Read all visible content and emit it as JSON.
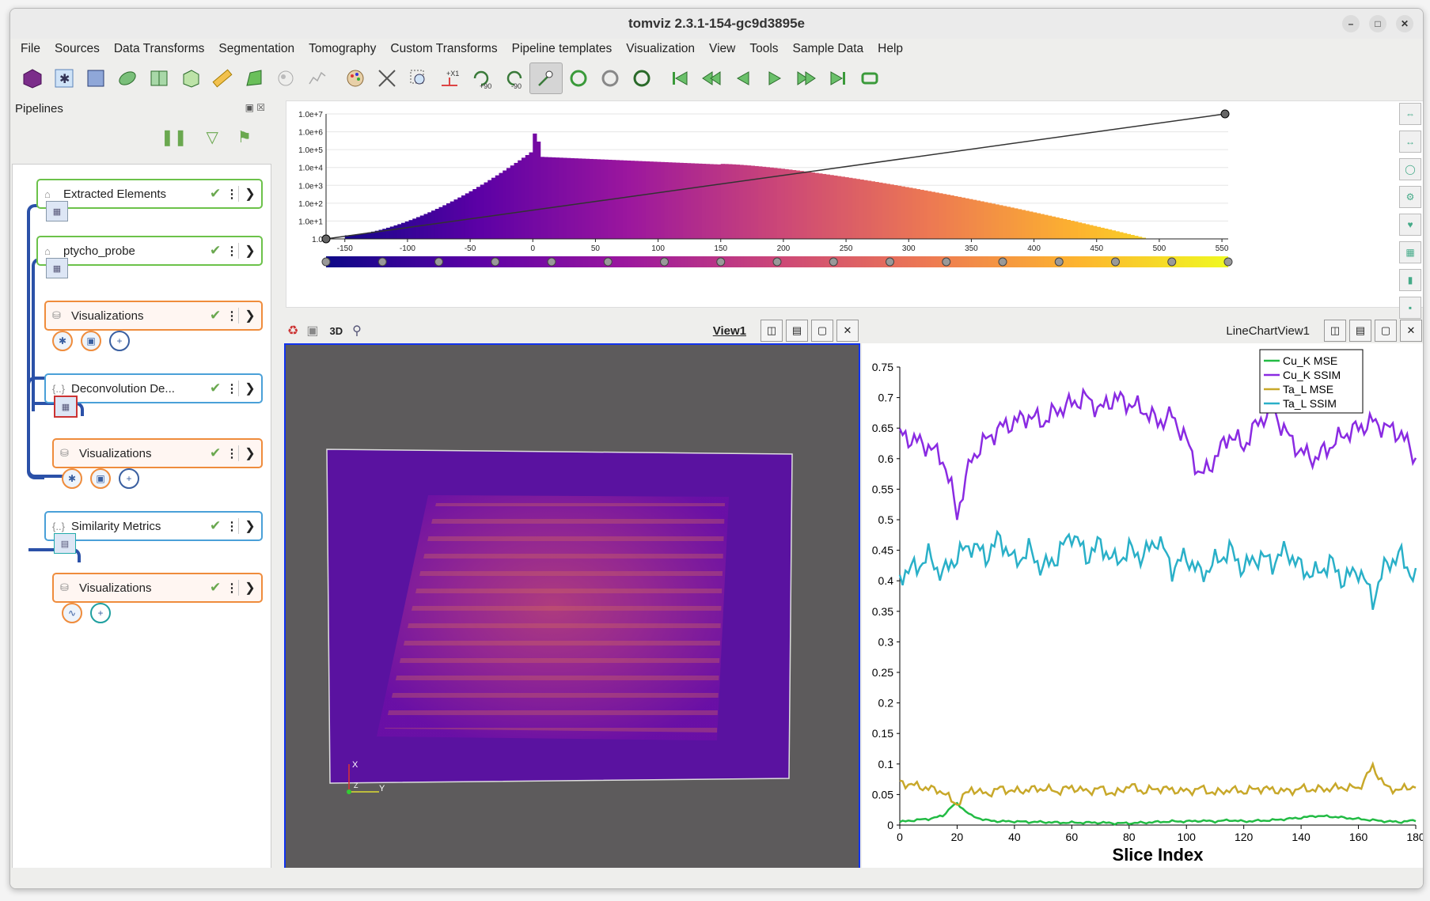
{
  "app": {
    "title": "tomviz 2.3.1-154-gc9d3895e"
  },
  "menu": [
    "File",
    "Sources",
    "Data Transforms",
    "Segmentation",
    "Tomography",
    "Custom Transforms",
    "Pipeline templates",
    "Visualization",
    "View",
    "Tools",
    "Sample Data",
    "Help"
  ],
  "toolbar": {
    "icons": [
      "cube-icon",
      "snowflake-icon",
      "volume-icon",
      "contour-icon",
      "slice-icon",
      "box-icon",
      "ruler-icon",
      "mesh-icon",
      "molecule-icon",
      "plot-icon",
      "palette-icon",
      "reset-camera-icon",
      "zoom-box-icon",
      "axis-icon",
      "rotate-plus-90-icon",
      "rotate-minus-90-icon",
      "interaction-icon",
      "refresh-icon",
      "refresh-gray-icon",
      "refresh-dark-icon",
      "first-frame-icon",
      "prev-frame-icon",
      "play-back-icon",
      "play-icon",
      "next-frame-icon",
      "last-frame-icon",
      "loop-icon"
    ],
    "rot_plus": "+90",
    "rot_minus": "-90"
  },
  "pipelines": {
    "title": "Pipelines",
    "nodes": [
      {
        "label": "Extracted Elements"
      },
      {
        "label": "ptycho_probe"
      },
      {
        "label": "Visualizations"
      },
      {
        "label": "Deconvolution De..."
      },
      {
        "label": "Visualizations"
      },
      {
        "label": "Similarity Metrics"
      },
      {
        "label": "Visualizations"
      }
    ]
  },
  "histogram": {
    "y_ticks": [
      "1.0e+7",
      "1.0e+6",
      "1.0e+5",
      "1.0e+4",
      "1.0e+3",
      "1.0e+2",
      "1.0e+1",
      "1.0"
    ],
    "x_ticks": [
      -150,
      -100,
      -50,
      0,
      50,
      100,
      150,
      200,
      250,
      300,
      350,
      400,
      450,
      500,
      550
    ],
    "x_range": [
      -165,
      555
    ],
    "colormap_colors": [
      "#0d0887",
      "#5c01a6",
      "#9c179e",
      "#cc4778",
      "#ed7953",
      "#fdb42f",
      "#f0f921"
    ]
  },
  "view1": {
    "title": "View1",
    "label_3d": "3D",
    "axis_x": "X",
    "axis_y": "Y",
    "axis_z": "Z"
  },
  "linechart": {
    "title": "LineChartView1"
  },
  "chart_data": {
    "type": "line",
    "xlabel": "Slice Index",
    "ylabel": "",
    "xlim": [
      0,
      180
    ],
    "ylim": [
      0,
      0.75
    ],
    "x_ticks": [
      0,
      20,
      40,
      60,
      80,
      100,
      120,
      140,
      160,
      180
    ],
    "y_ticks": [
      "0",
      "0.05",
      "0.1",
      "0.15",
      "0.2",
      "0.25",
      "0.3",
      "0.35",
      "0.4",
      "0.45",
      "0.5",
      "0.55",
      "0.6",
      "0.65",
      "0.7",
      "0.75"
    ],
    "legend_position": "top-right",
    "x": [
      0,
      5,
      10,
      15,
      18,
      20,
      25,
      30,
      35,
      40,
      45,
      50,
      55,
      60,
      65,
      70,
      75,
      80,
      85,
      90,
      95,
      100,
      105,
      110,
      115,
      120,
      125,
      130,
      135,
      140,
      145,
      150,
      155,
      160,
      165,
      170,
      175,
      180
    ],
    "series": [
      {
        "name": "Cu_K MSE",
        "color": "#22bb44",
        "values": [
          0.005,
          0.008,
          0.01,
          0.015,
          0.03,
          0.035,
          0.015,
          0.008,
          0.006,
          0.006,
          0.005,
          0.005,
          0.004,
          0.004,
          0.004,
          0.004,
          0.003,
          0.003,
          0.004,
          0.005,
          0.006,
          0.006,
          0.007,
          0.006,
          0.008,
          0.006,
          0.007,
          0.008,
          0.01,
          0.012,
          0.015,
          0.014,
          0.012,
          0.01,
          0.008,
          0.006,
          0.005,
          0.008
        ]
      },
      {
        "name": "Cu_K SSIM",
        "color": "#8a2be2",
        "values": [
          0.64,
          0.63,
          0.62,
          0.6,
          0.55,
          0.51,
          0.6,
          0.63,
          0.65,
          0.66,
          0.67,
          0.66,
          0.68,
          0.69,
          0.7,
          0.68,
          0.7,
          0.69,
          0.68,
          0.66,
          0.67,
          0.63,
          0.57,
          0.6,
          0.64,
          0.62,
          0.66,
          0.68,
          0.64,
          0.61,
          0.6,
          0.62,
          0.64,
          0.65,
          0.66,
          0.65,
          0.64,
          0.6
        ]
      },
      {
        "name": "Ta_L MSE",
        "color": "#c8a82a",
        "values": [
          0.07,
          0.065,
          0.06,
          0.055,
          0.04,
          0.035,
          0.06,
          0.05,
          0.06,
          0.055,
          0.058,
          0.06,
          0.055,
          0.062,
          0.055,
          0.06,
          0.05,
          0.065,
          0.055,
          0.06,
          0.058,
          0.055,
          0.06,
          0.052,
          0.058,
          0.055,
          0.06,
          0.058,
          0.055,
          0.06,
          0.058,
          0.06,
          0.062,
          0.06,
          0.095,
          0.06,
          0.058,
          0.065
        ]
      },
      {
        "name": "Ta_L SSIM",
        "color": "#2ab0c8",
        "values": [
          0.41,
          0.42,
          0.44,
          0.41,
          0.43,
          0.44,
          0.46,
          0.44,
          0.47,
          0.43,
          0.45,
          0.42,
          0.44,
          0.48,
          0.44,
          0.46,
          0.43,
          0.45,
          0.44,
          0.47,
          0.42,
          0.44,
          0.41,
          0.43,
          0.45,
          0.42,
          0.44,
          0.43,
          0.45,
          0.42,
          0.41,
          0.43,
          0.4,
          0.42,
          0.37,
          0.43,
          0.44,
          0.4
        ]
      }
    ]
  }
}
